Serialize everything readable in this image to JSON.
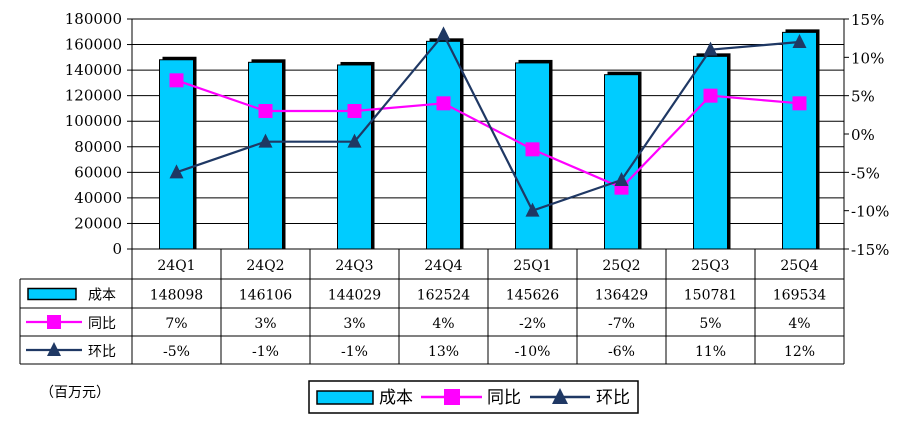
{
  "chart_data": {
    "type": "bar",
    "unit_label": "（百万元）",
    "categories": [
      "24Q1",
      "24Q2",
      "24Q3",
      "24Q4",
      "25Q1",
      "25Q2",
      "25Q3",
      "25Q4"
    ],
    "series": [
      {
        "name": "成本",
        "kind": "bar",
        "axis": "left",
        "color": "#00CCFF",
        "values": [
          148098,
          146106,
          144029,
          162524,
          145626,
          136429,
          150781,
          169534
        ],
        "labels": [
          "148098",
          "146106",
          "144029",
          "162524",
          "145626",
          "136429",
          "150781",
          "169534"
        ]
      },
      {
        "name": "同比",
        "kind": "line",
        "axis": "right",
        "color": "#FF00FF",
        "marker": "square",
        "values": [
          7,
          3,
          3,
          4,
          -2,
          -7,
          5,
          4
        ],
        "labels": [
          "7%",
          "3%",
          "3%",
          "4%",
          "-2%",
          "-7%",
          "5%",
          "4%"
        ]
      },
      {
        "name": "环比",
        "kind": "line",
        "axis": "right",
        "color": "#1F3864",
        "marker": "triangle",
        "values": [
          -5,
          -1,
          -1,
          13,
          -10,
          -6,
          11,
          12
        ],
        "labels": [
          "-5%",
          "-1%",
          "-1%",
          "13%",
          "-10%",
          "-6%",
          "11%",
          "12%"
        ]
      }
    ],
    "y_left": {
      "ylim": [
        0,
        180000
      ],
      "ticks": [
        0,
        20000,
        40000,
        60000,
        80000,
        100000,
        120000,
        140000,
        160000,
        180000
      ],
      "tick_labels": [
        "0",
        "20000",
        "40000",
        "60000",
        "80000",
        "100000",
        "120000",
        "140000",
        "160000",
        "180000"
      ]
    },
    "y_right": {
      "ylim": [
        -15,
        15
      ],
      "ticks": [
        -15,
        -10,
        -5,
        0,
        5,
        10,
        15
      ],
      "tick_labels": [
        "-15%",
        "-10%",
        "-5%",
        "0%",
        "5%",
        "10%",
        "15%"
      ]
    },
    "grid": true,
    "legend_position": "bottom"
  }
}
